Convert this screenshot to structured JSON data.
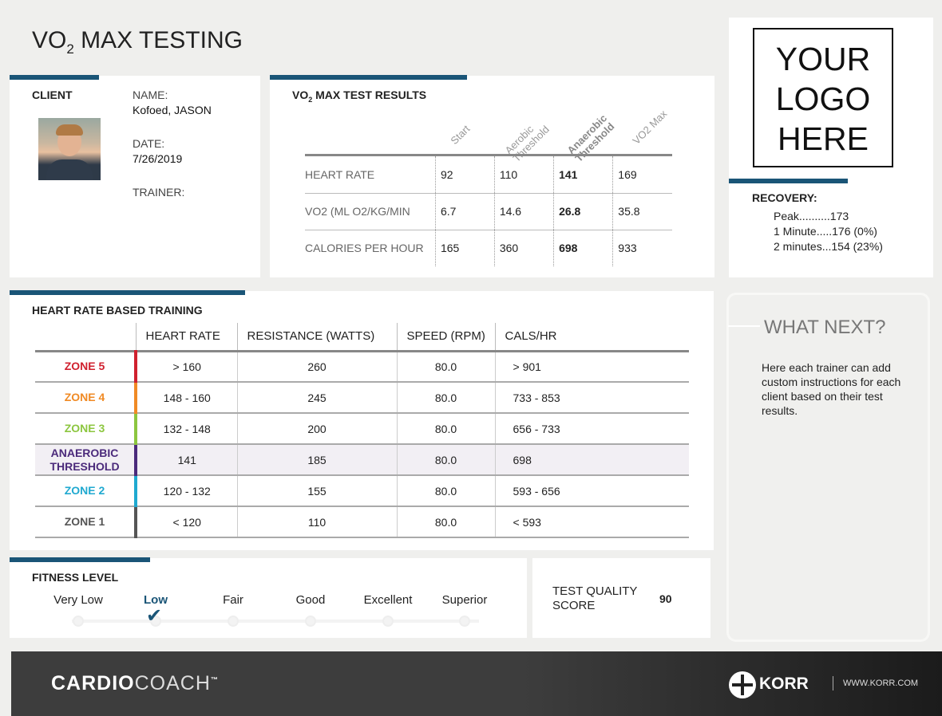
{
  "title": {
    "main": "VO",
    "sub": "2",
    "rest": " MAX TESTING"
  },
  "client": {
    "heading": "CLIENT",
    "name_label": "NAME:",
    "name": "Kofoed, JASON",
    "date_label": "DATE:",
    "date": "7/26/2019",
    "trainer_label": "TRAINER:"
  },
  "results": {
    "heading_a": "VO",
    "heading_sub": "2",
    "heading_b": " MAX TEST RESULTS",
    "columns": [
      "Start",
      "Aerobic Threshold",
      "Anaerobic Threshold",
      "VO2 Max"
    ],
    "rows": [
      {
        "label": "HEART RATE",
        "values": [
          "92",
          "110",
          "141",
          "169"
        ]
      },
      {
        "label": "VO2 (ML O2/KG/MIN",
        "values": [
          "6.7",
          "14.6",
          "26.8",
          "35.8"
        ]
      },
      {
        "label": "CALORIES PER HOUR",
        "values": [
          "165",
          "360",
          "698",
          "933"
        ]
      }
    ]
  },
  "logo": {
    "text": "YOUR LOGO HERE"
  },
  "recovery": {
    "heading": "RECOVERY:",
    "items": [
      "Peak..........173",
      "1 Minute.....176 (0%)",
      "2 minutes...154 (23%)"
    ]
  },
  "training": {
    "heading": "HEART RATE BASED TRAINING",
    "headers": [
      "",
      "HEART RATE",
      "RESISTANCE (WATTS)",
      "SPEED (RPM)",
      "CALS/HR"
    ],
    "rows": [
      {
        "zone": "ZONE 5",
        "color": "#d0202e",
        "values": [
          "> 160",
          "260",
          "80.0",
          "> 901"
        ]
      },
      {
        "zone": "ZONE 4",
        "color": "#f08a24",
        "values": [
          "148 - 160",
          "245",
          "80.0",
          "733 - 853"
        ]
      },
      {
        "zone": "ZONE 3",
        "color": "#8cc63f",
        "values": [
          "132 - 148",
          "200",
          "80.0",
          "656 - 733"
        ]
      },
      {
        "zone": "ANAEROBIC THRESHOLD",
        "color": "#4b2a7b",
        "values": [
          "141",
          "185",
          "80.0",
          "698"
        ]
      },
      {
        "zone": "ZONE 2",
        "color": "#1fa9d0",
        "values": [
          "120 - 132",
          "155",
          "80.0",
          "593 - 656"
        ]
      },
      {
        "zone": "ZONE 1",
        "color": "#555555",
        "values": [
          "< 120",
          "110",
          "80.0",
          "< 593"
        ]
      }
    ]
  },
  "fitness": {
    "heading": "FITNESS LEVEL",
    "levels": [
      "Very Low",
      "Low",
      "Fair",
      "Good",
      "Excellent",
      "Superior"
    ],
    "selected_index": 1
  },
  "quality": {
    "label": "TEST QUALITY SCORE",
    "score": "90"
  },
  "next": {
    "heading": "WHAT NEXT?",
    "body": "Here each trainer can add custom instructions for each client based on their test results."
  },
  "footer": {
    "brand_a": "CARDIO",
    "brand_b": "COACH",
    "tm": "™",
    "korr": "KORR",
    "url": "WWW.KORR.COM"
  }
}
